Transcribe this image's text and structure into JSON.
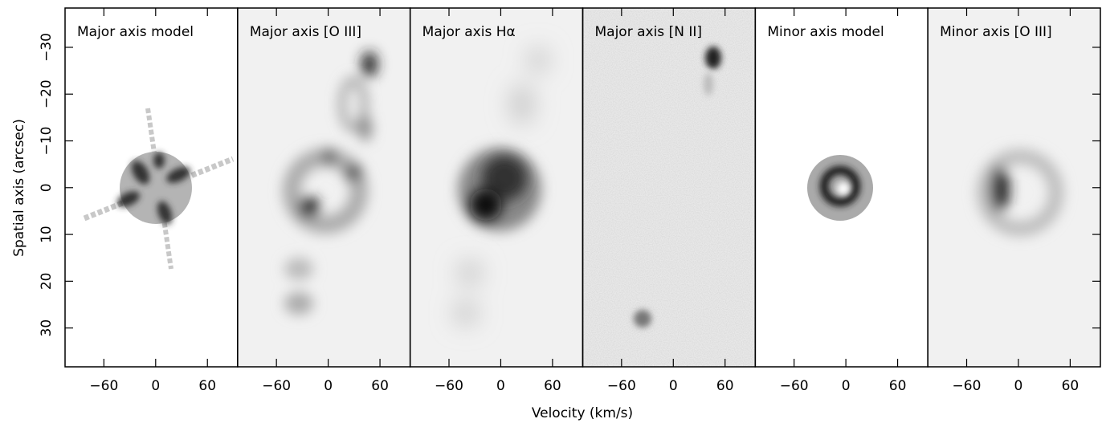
{
  "chart_data": {
    "type": "image",
    "xlabel": "Velocity (km/s)",
    "ylabel": "Spatial axis (arcsec)",
    "panels": [
      {
        "title": "Major axis model"
      },
      {
        "title": "Major axis [O III]"
      },
      {
        "title": "Major axis Hα"
      },
      {
        "title": "Major axis [N II]"
      },
      {
        "title": "Minor axis model"
      },
      {
        "title": "Minor axis [O III]"
      }
    ],
    "xlim": [
      -105,
      95
    ],
    "xticks": [
      {
        "value": -60,
        "label": "−60"
      },
      0,
      60
    ],
    "ylim": [
      38.3,
      -38.4
    ],
    "yticks": [
      {
        "value": -30,
        "label": "−30"
      },
      {
        "value": -20,
        "label": "−20"
      },
      {
        "value": -10,
        "label": "−10"
      },
      0,
      10,
      20,
      30
    ]
  }
}
